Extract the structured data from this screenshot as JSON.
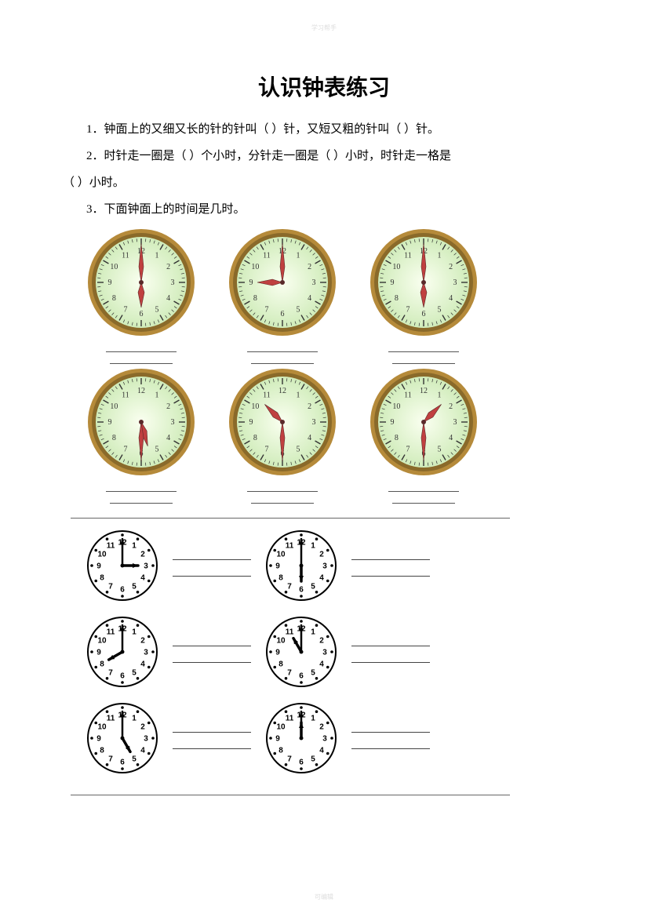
{
  "watermark_top": "学习帮手",
  "watermark_bottom": "可编辑",
  "title": "认识钟表练习",
  "q1": "1．钟面上的又细又长的针的针叫（  ）针，又短又粗的针叫（     ）针。",
  "q2": "2．时针走一圈是（     ）个小时，分针走一圈是（     ）小时，时针走一格是",
  "q2b": "（   ）小时。",
  "q3": "3．下面钟面上的时间是几时。",
  "color_clock": {
    "rim_color": "#b58a3a",
    "face_gradient_inner": "#fafff0",
    "face_gradient_outer": "#c8e8b0",
    "tick_color": "#333333",
    "number_color": "#333333",
    "hand_color": "#c04040",
    "hand_outline": "#5a2a2a",
    "size": 140,
    "numbers": [
      "12",
      "1",
      "2",
      "3",
      "4",
      "5",
      "6",
      "7",
      "8",
      "9",
      "10",
      "11"
    ],
    "number_fontsize": 10
  },
  "bw_clock": {
    "rim_color": "#000000",
    "face_color": "#ffffff",
    "tick_color": "#000000",
    "number_color": "#000000",
    "hand_color": "#000000",
    "size": 92,
    "numbers": [
      "12",
      "1",
      "2",
      "3",
      "4",
      "5",
      "6",
      "7",
      "8",
      "9",
      "10",
      "11"
    ],
    "number_fontsize": 10
  },
  "color_clocks_row1": [
    {
      "hour": 6,
      "minute": 0
    },
    {
      "hour": 9,
      "minute": 0
    },
    {
      "hour": 6,
      "minute": 0
    }
  ],
  "color_clocks_row2": [
    {
      "hour": 5,
      "minute": 30
    },
    {
      "hour": 10,
      "minute": 30
    },
    {
      "hour": 1,
      "minute": 30
    }
  ],
  "bw_clocks": [
    [
      {
        "hour": 3,
        "minute": 0
      },
      {
        "hour": 6,
        "minute": 0
      }
    ],
    [
      {
        "hour": 8,
        "minute": 0
      },
      {
        "hour": 11,
        "minute": 0
      }
    ],
    [
      {
        "hour": 5,
        "minute": 0
      },
      {
        "hour": 12,
        "minute": 0
      }
    ]
  ]
}
